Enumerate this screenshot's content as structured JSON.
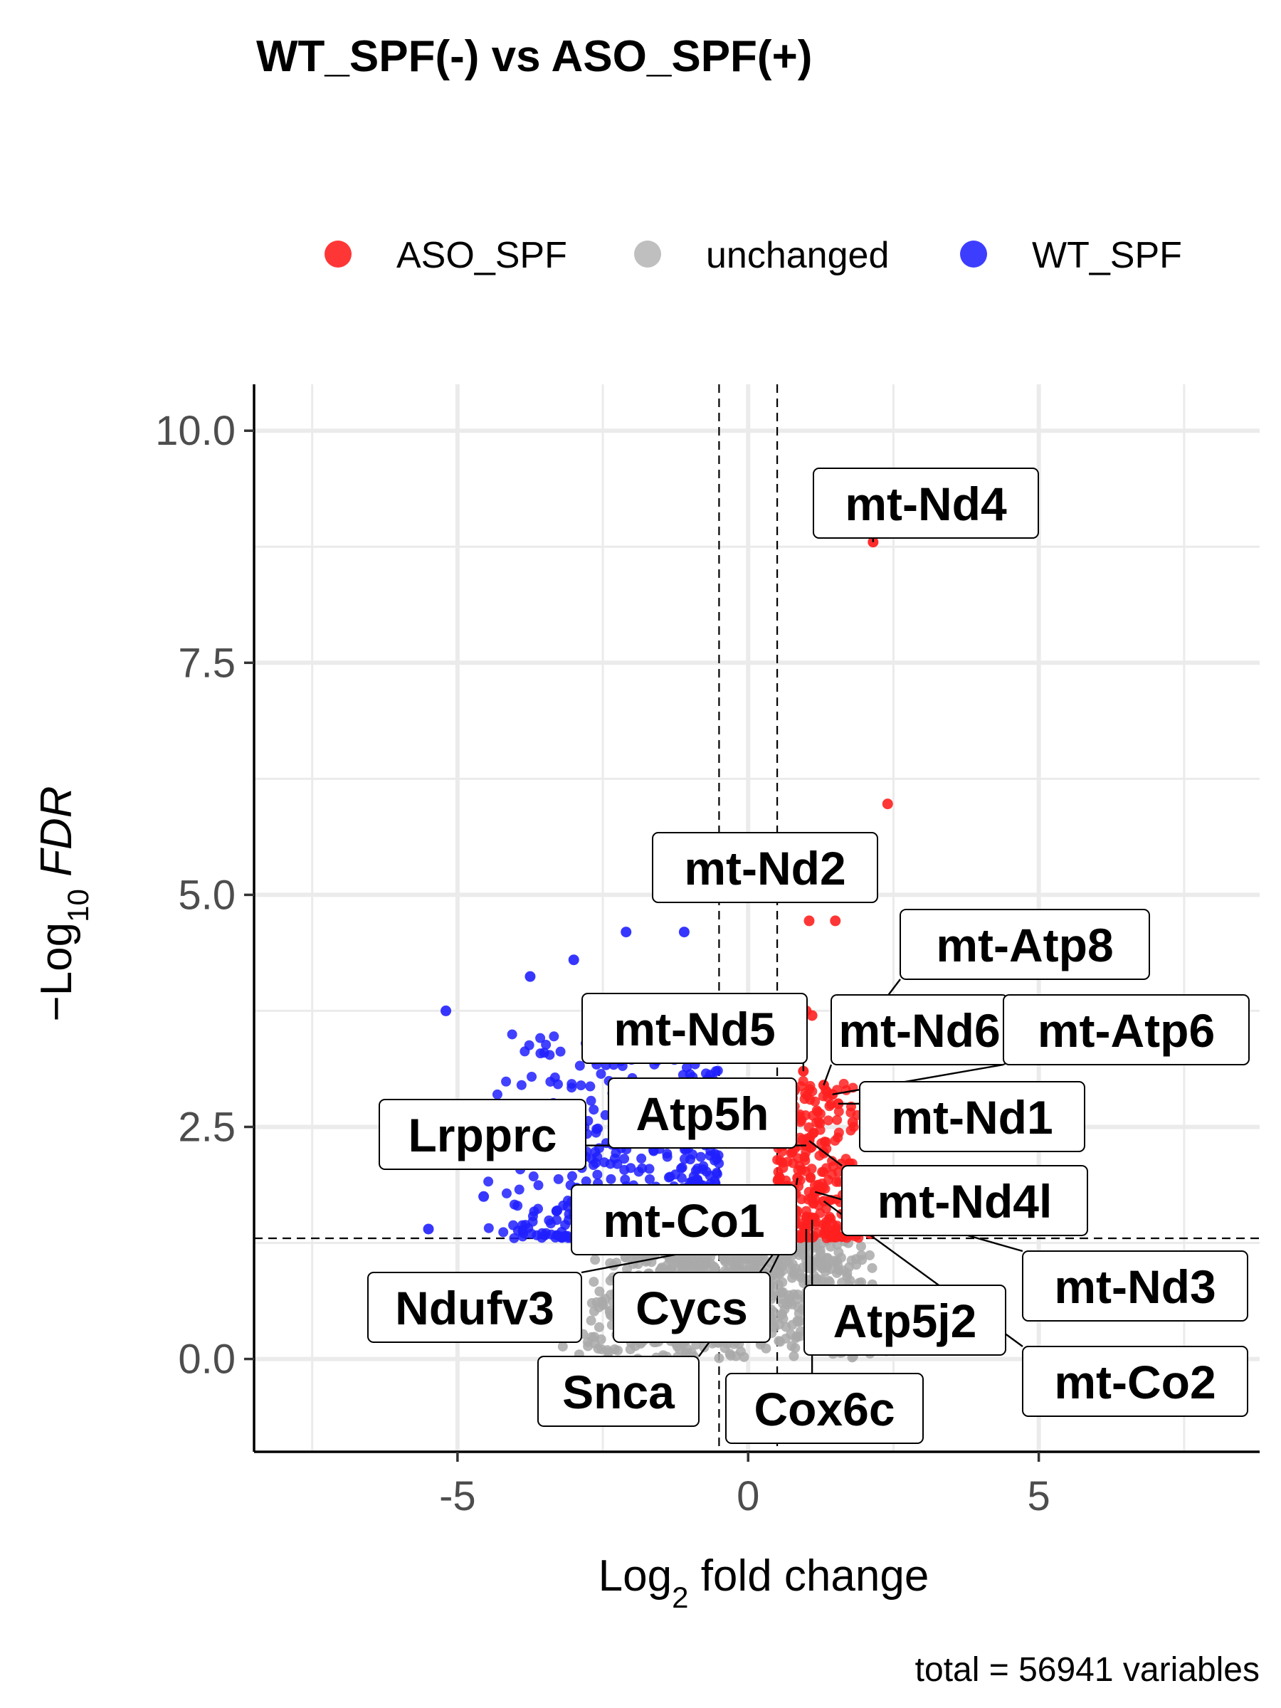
{
  "chart_data": {
    "type": "scatter",
    "title": "WT_SPF(-) vs ASO_SPF(+)",
    "xlabel_base": "Log",
    "xlabel_sub": "2",
    "xlabel_rest": " fold change",
    "ylabel_prefix": "−Log",
    "ylabel_sub": "10",
    "ylabel_italic": " FDR",
    "caption": "total = 56941 variables",
    "xlim": [
      -8.5,
      8.8
    ],
    "ylim": [
      -1.0,
      10.5
    ],
    "x_ticks": [
      -5,
      0,
      5
    ],
    "x_tick_labels": [
      "-5",
      "0",
      "5"
    ],
    "y_ticks": [
      0,
      2.5,
      5,
      7.5,
      10
    ],
    "y_tick_labels": [
      "0.0",
      "2.5",
      "5.0",
      "7.5",
      "10.0"
    ],
    "fc_cutoff": 0.5,
    "fdr_cutoff": 1.3,
    "grid": true,
    "legend_position": "top",
    "legend": [
      {
        "label": "ASO_SPF",
        "color": "#ff2020"
      },
      {
        "label": "unchanged",
        "color": "#b8b8b8"
      },
      {
        "label": "WT_SPF",
        "color": "#2828ff"
      }
    ],
    "colors": {
      "up": "#ff2020",
      "none": "#a9a9a9",
      "down": "#2020ff"
    },
    "labeled_genes": [
      {
        "gene": "mt-Nd4",
        "x": 2.15,
        "y": 8.8,
        "color": "#ff2020"
      },
      {
        "gene": "mt-Nd2",
        "x": 1.35,
        "y": 5.05,
        "color": "#ff2020"
      },
      {
        "gene": "mt-Atp8",
        "x": 1.6,
        "y": 3.25,
        "color": "#ff2020"
      },
      {
        "gene": "mt-Nd5",
        "x": 0.95,
        "y": 3.1,
        "color": "#ff2020"
      },
      {
        "gene": "mt-Nd6",
        "x": 1.3,
        "y": 2.95,
        "color": "#ff2020"
      },
      {
        "gene": "mt-Atp6",
        "x": 1.45,
        "y": 2.85,
        "color": "#ff2020"
      },
      {
        "gene": "mt-Nd1",
        "x": 1.55,
        "y": 2.75,
        "color": "#ff2020"
      },
      {
        "gene": "Atp5h",
        "x": 0.6,
        "y": 2.3,
        "color": "#ff2020"
      },
      {
        "gene": "Lrpprc",
        "x": 1.0,
        "y": 2.3,
        "color": "#ff2020"
      },
      {
        "gene": "mt-Nd4l",
        "x": 1.05,
        "y": 2.35,
        "color": "#ff2020"
      },
      {
        "gene": "mt-Co1",
        "x": 0.85,
        "y": 1.95,
        "color": "#ff2020"
      },
      {
        "gene": "mt-Nd3",
        "x": 1.15,
        "y": 1.8,
        "color": "#ff2020"
      },
      {
        "gene": "Ndufv3",
        "x": 0.65,
        "y": 1.35,
        "color": "#ff2020"
      },
      {
        "gene": "Cycs",
        "x": 0.75,
        "y": 1.4,
        "color": "#ff2020"
      },
      {
        "gene": "Atp5j2",
        "x": 1.0,
        "y": 1.4,
        "color": "#ff2020"
      },
      {
        "gene": "mt-Co2",
        "x": 1.3,
        "y": 1.7,
        "color": "#ff2020"
      },
      {
        "gene": "Snca",
        "x": 0.8,
        "y": 1.45,
        "color": "#ff2020"
      },
      {
        "gene": "Cox6c",
        "x": 1.1,
        "y": 1.5,
        "color": "#ff2020"
      }
    ],
    "other_significant_up": [
      {
        "x": 2.4,
        "y": 5.98
      },
      {
        "x": 1.05,
        "y": 4.72
      },
      {
        "x": 1.5,
        "y": 4.72
      },
      {
        "x": 1.0,
        "y": 3.75
      },
      {
        "x": 1.1,
        "y": 3.7
      },
      {
        "x": 2.1,
        "y": 2.45
      },
      {
        "x": 4.3,
        "y": 2.7
      },
      {
        "x": 3.95,
        "y": 1.6
      },
      {
        "x": 2.1,
        "y": 1.35
      },
      {
        "x": 1.8,
        "y": 2.55
      },
      {
        "x": 1.6,
        "y": 2.1
      },
      {
        "x": 2.0,
        "y": 1.85
      }
    ],
    "other_significant_down": [
      {
        "x": -5.2,
        "y": 3.75
      },
      {
        "x": -3.75,
        "y": 4.12
      },
      {
        "x": -3.0,
        "y": 4.3
      },
      {
        "x": -2.1,
        "y": 4.6
      },
      {
        "x": -1.1,
        "y": 4.6
      },
      {
        "x": -5.5,
        "y": 1.4
      },
      {
        "x": -4.55,
        "y": 1.75
      },
      {
        "x": -2.75,
        "y": 3.55
      }
    ],
    "cloud_summary": {
      "up_region": {
        "x_range": [
          0.5,
          1.9
        ],
        "y_range": [
          1.3,
          3.0
        ],
        "count": 320
      },
      "down_region": {
        "x_range": [
          -4.7,
          -0.5
        ],
        "y_range": [
          1.3,
          3.5
        ],
        "count": 560
      },
      "unchanged_region": {
        "x_range": [
          -3.3,
          2.8
        ],
        "y_range": [
          0.0,
          1.3
        ],
        "count": 900
      }
    }
  }
}
